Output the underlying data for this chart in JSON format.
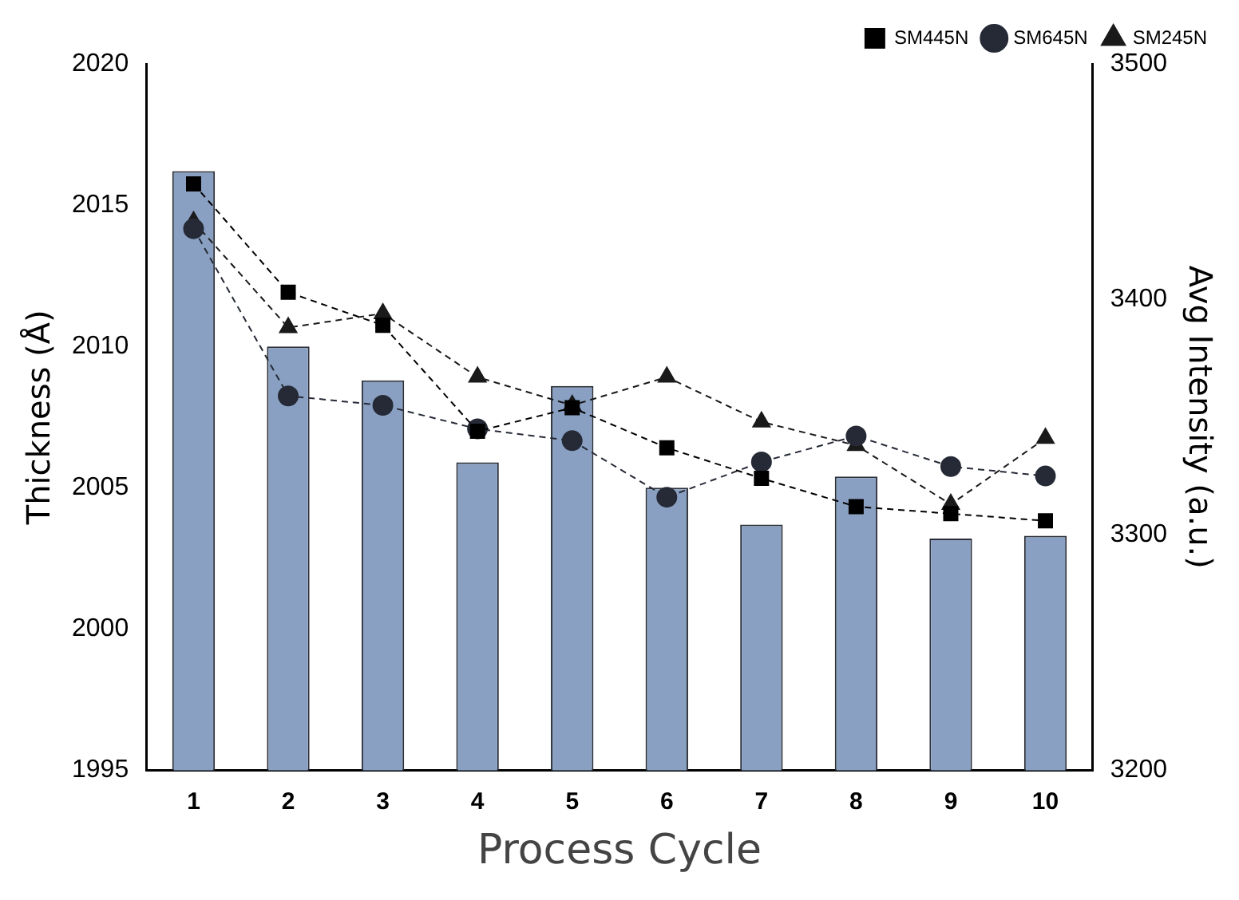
{
  "chart_data": {
    "type": "bar",
    "xlabel": "Process Cycle",
    "ylabel": "Thickness (Å)",
    "y2label": "Avg Intensity (a.u.)",
    "categories": [
      "1",
      "2",
      "3",
      "4",
      "5",
      "6",
      "7",
      "8",
      "9",
      "10"
    ],
    "series": [
      {
        "color": "#8aa0c2",
        "values": [
          2016.2,
          2010.0,
          2008.8,
          2005.9,
          2008.6,
          2005.0,
          2003.7,
          2005.4,
          2003.2,
          2003.3
        ]
      },
      {
        "type": "line",
        "axis": "y2",
        "name": "SM445N",
        "color": "#000000",
        "marker": "square",
        "values": [
          3449,
          3403,
          3389,
          3344,
          3354,
          3337,
          3324,
          3312,
          3309,
          3306
        ]
      },
      {
        "type": "line",
        "axis": "y2",
        "name": "SM645N",
        "color": "#252a36",
        "marker": "circle",
        "values": [
          3430,
          3359,
          3355,
          3345,
          3340,
          3316,
          3331,
          3342,
          3329,
          3325
        ]
      },
      {
        "type": "line",
        "axis": "y2",
        "name": "SM245N",
        "color": "#1a1a1a",
        "marker": "triangle",
        "values": [
          3433,
          3388,
          3394,
          3367,
          3355,
          3367,
          3348,
          3338,
          3313,
          3341
        ]
      }
    ],
    "ylim": [
      1995,
      2020
    ],
    "yticks": [
      1995,
      2000,
      2005,
      2010,
      2015,
      2020
    ],
    "y2lim": [
      3200,
      3500
    ],
    "y2ticks": [
      3200,
      3300,
      3400,
      3500
    ],
    "line_style": "dashed",
    "grid": false,
    "legend": "top right"
  }
}
